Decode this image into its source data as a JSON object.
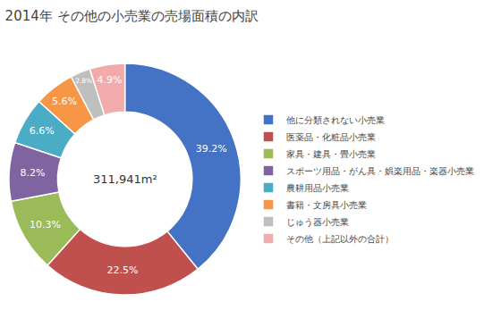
{
  "chart_data": {
    "type": "donut",
    "title": "2014年 その他の小売業の売場面積の内訳",
    "annotations": [
      "311,941m²"
    ],
    "categories": [
      "他に分類されない小売業",
      "医薬品・化粧品小売業",
      "家具・建具・畳小売業",
      "スポーツ用品・がん具・娯楽用品・楽器小売業",
      "農耕用品小売業",
      "書籍・文房具小売業",
      "じゅう器小売業",
      "その他（上記以外の合計）"
    ],
    "values": [
      39.2,
      22.5,
      10.3,
      8.2,
      6.6,
      5.6,
      2.8,
      4.9
    ],
    "value_labels": [
      "39.2%",
      "22.5%",
      "10.3%",
      "8.2%",
      "6.6%",
      "5.6%",
      "2.8%",
      "4.9%"
    ],
    "colors": [
      "#4472C4",
      "#C0504D",
      "#9BBB59",
      "#8064A2",
      "#4BACC6",
      "#F79646",
      "#BFBFBF",
      "#F2ABAB"
    ],
    "data_labels": true,
    "legend": "right"
  }
}
